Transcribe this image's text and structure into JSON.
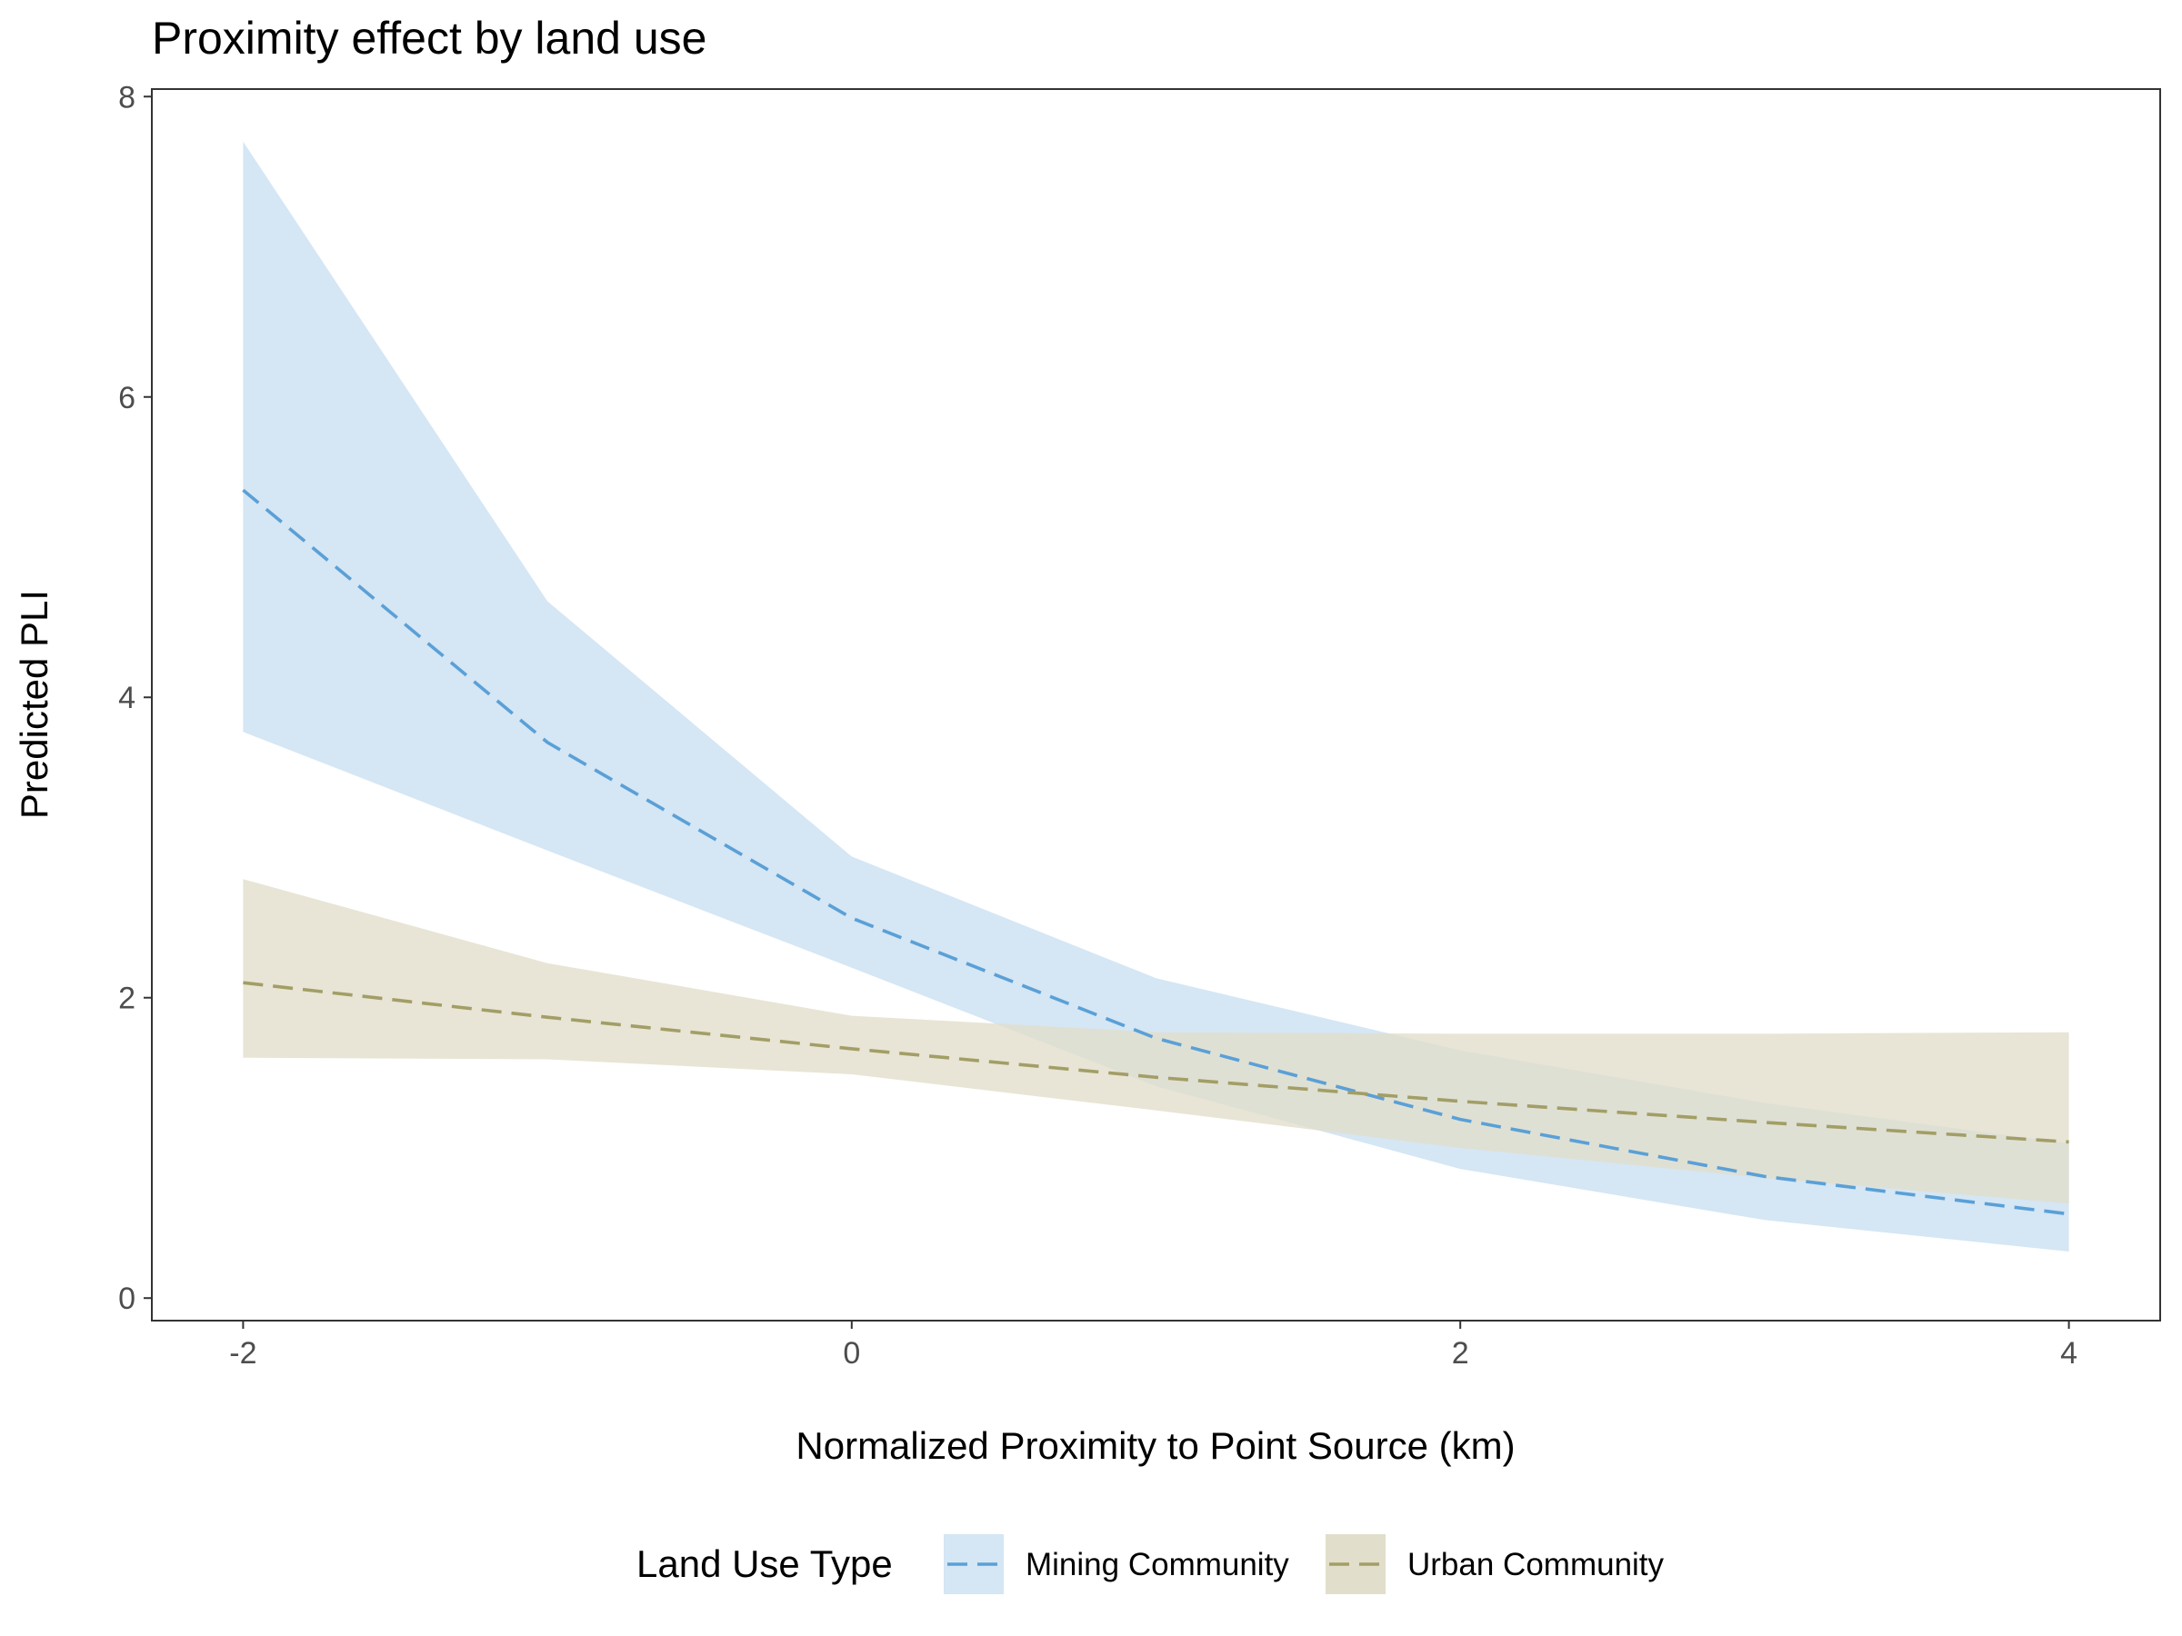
{
  "chart_data": {
    "type": "line",
    "title": "Proximity effect by land use",
    "xlabel": "Normalized Proximity to Point Source (km)",
    "ylabel": "Predicted PLI",
    "xlim": [
      -2.3,
      4.3
    ],
    "ylim": [
      -0.15,
      8.05
    ],
    "xticks": [
      -2,
      0,
      2,
      4
    ],
    "yticks": [
      0,
      2,
      4,
      6,
      8
    ],
    "x": [
      -2,
      -1,
      0,
      1,
      2,
      3,
      4
    ],
    "grid": false,
    "legend": {
      "title": "Land Use Type",
      "position": "bottom"
    },
    "series": [
      {
        "name": "Mining Community",
        "color": "#5aa0d7",
        "ribbon_color": "#d5e6f4",
        "line_style": "dashed",
        "values": [
          5.38,
          3.7,
          2.53,
          1.73,
          1.19,
          0.81,
          0.56
        ],
        "lower": [
          3.77,
          2.98,
          2.2,
          1.41,
          0.86,
          0.52,
          0.31
        ],
        "upper": [
          7.7,
          4.64,
          2.94,
          2.13,
          1.65,
          1.3,
          1.03
        ]
      },
      {
        "name": "Urban Community",
        "color": "#a29e66",
        "ribbon_color": "#e1decb",
        "line_style": "dashed",
        "values": [
          2.1,
          1.87,
          1.66,
          1.47,
          1.31,
          1.17,
          1.04
        ],
        "lower": [
          1.6,
          1.59,
          1.49,
          1.25,
          1.0,
          0.8,
          0.63
        ],
        "upper": [
          2.79,
          2.23,
          1.88,
          1.77,
          1.76,
          1.76,
          1.77
        ]
      }
    ]
  }
}
